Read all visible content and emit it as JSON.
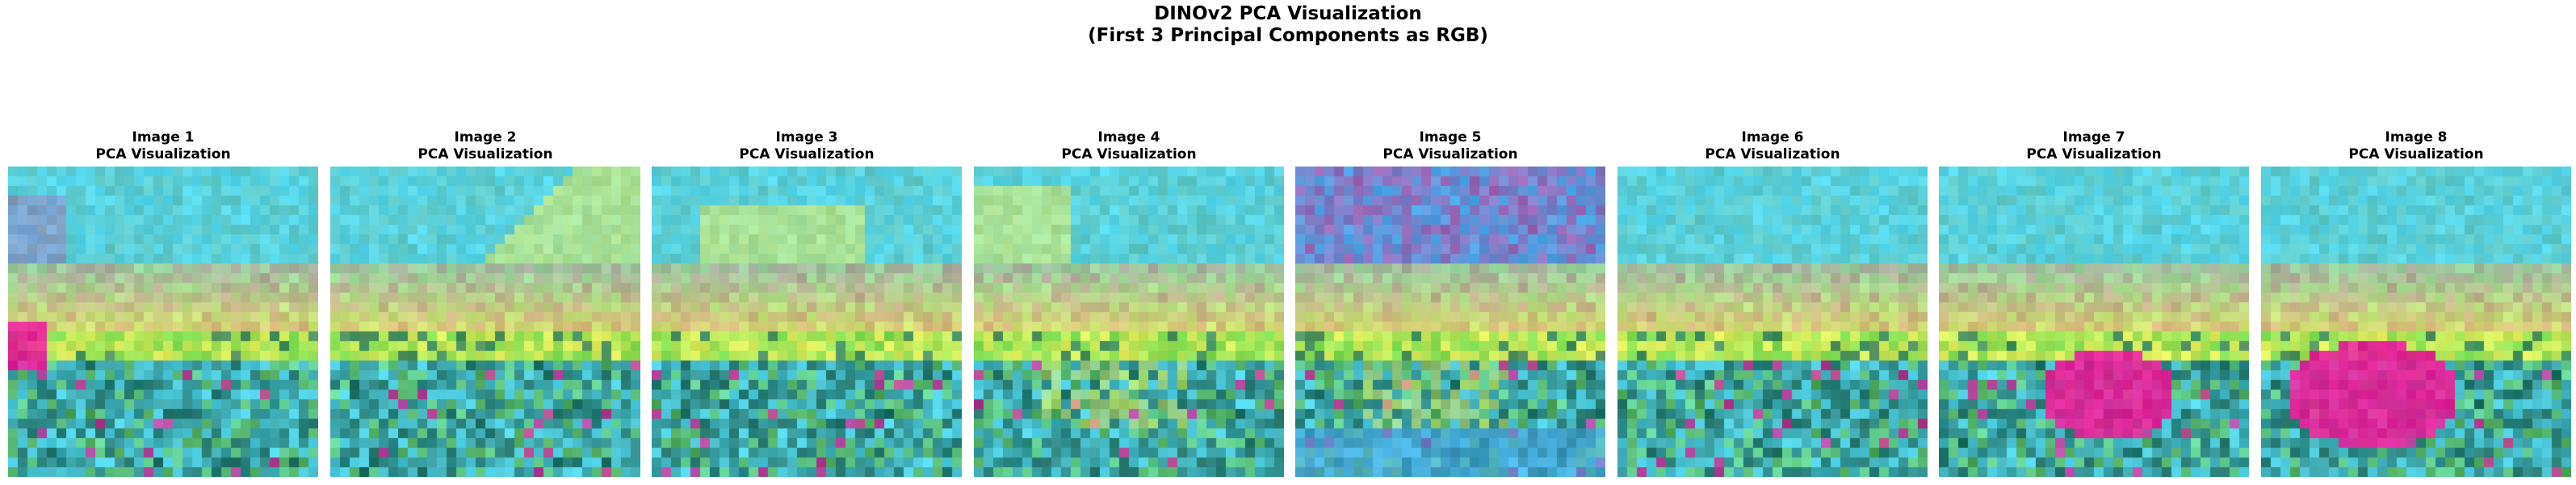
{
  "figure": {
    "title_line1": "DINOv2 PCA Visualization",
    "title_line2": "(First 3 Principal Components as RGB)"
  },
  "panels": [
    {
      "title": "Image 1",
      "subtitle": "PCA Visualization",
      "scene": "magenta-left"
    },
    {
      "title": "Image 2",
      "subtitle": "PCA Visualization",
      "scene": "yellow-diagonal"
    },
    {
      "title": "Image 3",
      "subtitle": "PCA Visualization",
      "scene": "yellow-block"
    },
    {
      "title": "Image 4",
      "subtitle": "PCA Visualization",
      "scene": "yellow-left"
    },
    {
      "title": "Image 5",
      "subtitle": "PCA Visualization",
      "scene": "purple-sky"
    },
    {
      "title": "Image 6",
      "subtitle": "PCA Visualization",
      "scene": "teal-ground"
    },
    {
      "title": "Image 7",
      "subtitle": "PCA Visualization",
      "scene": "magenta-center"
    },
    {
      "title": "Image 8",
      "subtitle": "PCA Visualization",
      "scene": "magenta-large"
    }
  ],
  "palette": {
    "teal": "#5fc9c8",
    "cyan": "#55d8ee",
    "magenta": "#e81e9a",
    "yellow": "#e8f060",
    "green": "#7adc50",
    "dark_teal": "#1e6e62",
    "purple": "#9e64b4",
    "blue": "#4aa8e8"
  }
}
